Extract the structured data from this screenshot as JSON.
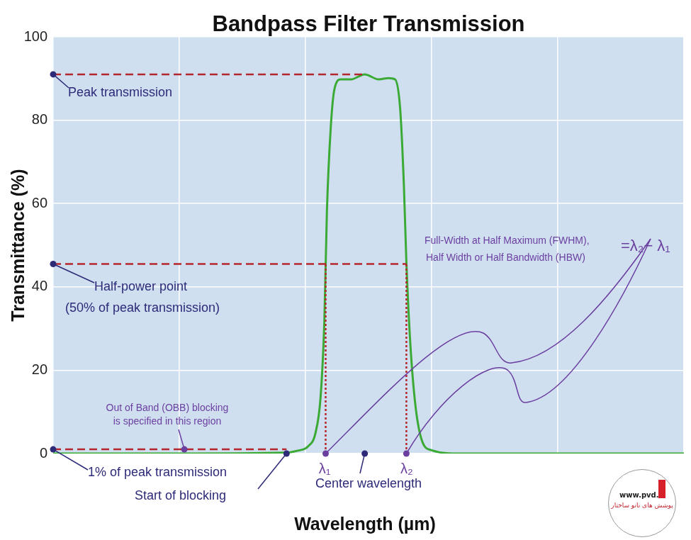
{
  "chart_data": {
    "type": "line",
    "title": "Bandpass Filter Transmission",
    "x_label": "Wavelength (µm)",
    "y_label": "Transmittance (%)",
    "x": [
      0,
      1.0,
      1.83,
      1.94,
      2.02,
      2.08,
      2.12,
      2.15,
      2.17,
      2.2,
      2.23,
      2.28,
      2.36,
      2.47,
      2.58,
      2.66,
      2.71,
      2.75,
      2.78,
      2.8,
      2.83,
      2.87,
      2.92,
      3.0,
      3.23,
      4.0,
      5.0
    ],
    "values": [
      0,
      0,
      0.2,
      0.7,
      1.7,
      5,
      13.6,
      32,
      58,
      78,
      87.5,
      89.8,
      89.8,
      91,
      89.8,
      90.1,
      89.8,
      83,
      64.6,
      46,
      27,
      12,
      3.4,
      0.8,
      0,
      0,
      0
    ],
    "color": "#3aaa35",
    "xlim": [
      0,
      5
    ],
    "xticks": [
      0,
      1,
      2,
      3,
      4,
      5
    ],
    "ylim": [
      0,
      100
    ],
    "yticks": [
      0,
      20,
      40,
      60,
      80,
      100
    ],
    "grid": true,
    "tick_labels": "y",
    "annotations": [
      {
        "text": [
          "Peak transmission"
        ],
        "x": 0,
        "y": 91,
        "line_to_x": 2.47,
        "line_style": "dashed"
      },
      {
        "text": [
          "Half-power point",
          "(50% of peak transmission)"
        ],
        "x": 0,
        "y": 45.5,
        "line_to_x": 2.8,
        "line_style": "dashed"
      },
      {
        "text": [
          "1% of peak transmission"
        ],
        "x": 0,
        "y": 1,
        "line_to_x": 1.85,
        "line_style": "dashed"
      },
      {
        "text": [
          "Out of Band (OBB) blocking",
          "is specified in this region"
        ],
        "x": 1.04,
        "y": 1
      },
      {
        "text": [
          "Start of blocking"
        ],
        "x": 1.85,
        "y": 0
      },
      {
        "text": [
          "λ₁"
        ],
        "x": 2.16,
        "y": 0,
        "line_to_y": 45.5,
        "line_style": "dotted"
      },
      {
        "text": [
          "Center wavelength"
        ],
        "x": 2.47,
        "y": 0
      },
      {
        "text": [
          "λ₂"
        ],
        "x": 2.8,
        "y": 0,
        "line_to_y": 45.5,
        "line_style": "dotted"
      },
      {
        "text": [
          "Full-Width at Half Maximum (FWHM),",
          "Half Width or Half Bandwidth (HBW)"
        ],
        "formula": "=λ₂− λ₁"
      }
    ],
    "logo": [
      "www.pvd.ir",
      "پوشش های نانو ساختار"
    ]
  }
}
